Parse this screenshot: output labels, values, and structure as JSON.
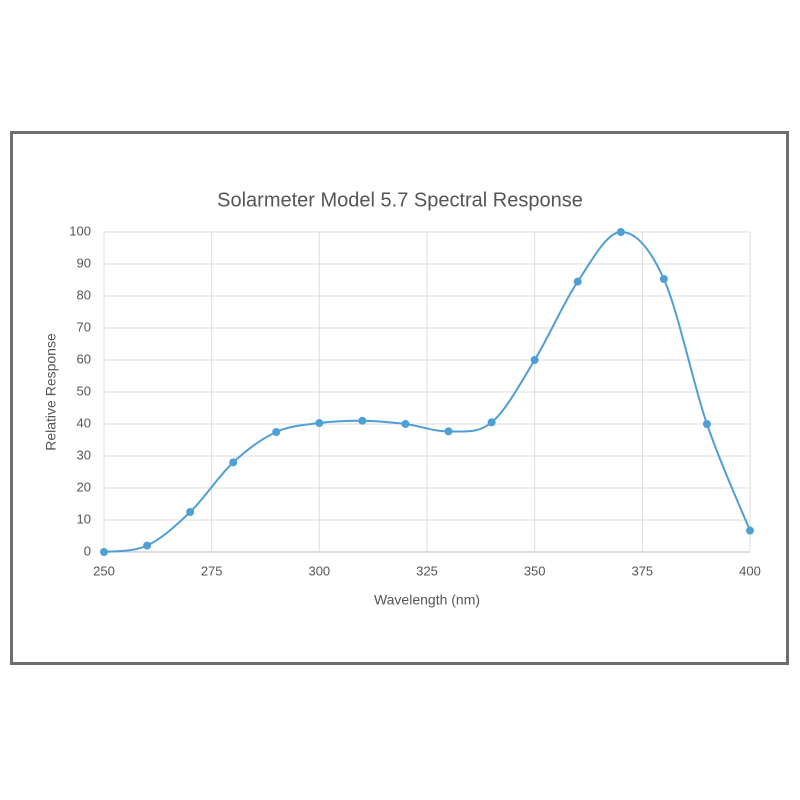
{
  "chart_data": {
    "type": "line",
    "title": "Solarmeter Model 5.7 Spectral Response",
    "x_label": "Wavelength (nm)",
    "y_label": "Relative Response",
    "x": [
      250,
      260,
      270,
      280,
      290,
      300,
      310,
      320,
      330,
      340,
      350,
      360,
      370,
      380,
      390,
      400
    ],
    "series": [
      {
        "name": "Relative Response",
        "color": "#4e9fd6",
        "values": [
          0,
          2,
          12.5,
          28,
          37.5,
          40.3,
          41,
          40,
          37.7,
          40.5,
          60,
          84.5,
          100,
          85.3,
          40,
          6.7
        ]
      }
    ],
    "xlim": [
      250,
      400
    ],
    "xticks": [
      250,
      275,
      300,
      325,
      350,
      375,
      400
    ],
    "ylim": [
      0,
      100
    ],
    "yticks": [
      0,
      10,
      20,
      30,
      40,
      50,
      60,
      70,
      80,
      90,
      100
    ],
    "grid": true,
    "smooth": true
  }
}
